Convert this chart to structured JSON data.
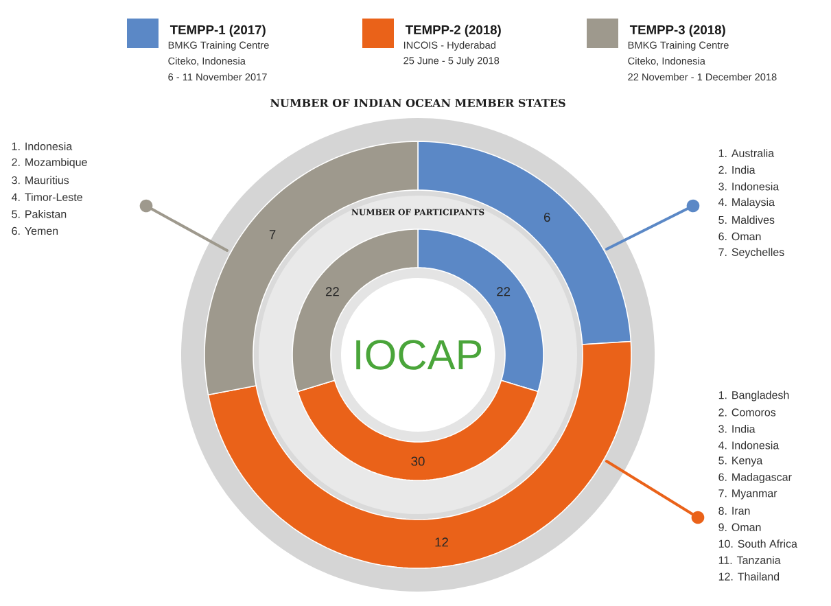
{
  "chart_data": [
    {
      "type": "donut",
      "title": "NUMBER OF INDIAN OCEAN MEMBER STATES",
      "categories": [
        "TEMPP-1 (2017)",
        "TEMPP-2 (2018)",
        "TEMPP-3 (2018)"
      ],
      "values": [
        6,
        12,
        7
      ],
      "colors": [
        "#5b88c6",
        "#ea6219",
        "#9e998d"
      ],
      "data_labels": true,
      "legend": "top",
      "annotations": [
        "BMKG Training Centre",
        "Citeko, Indonesia",
        "6 - 11 November 2017",
        "INCOIS - Hyderabad",
        "25 June - 5 July 2018",
        "BMKG Training Centre",
        "Citeko, Indonesia",
        "22 November - 1 December 2018",
        "1. Indonesia",
        "2. Mozambique",
        "3. Mauritius",
        "4. Timor-Leste",
        "5. Pakistan",
        "6. Yemen",
        "1. Australia",
        "2. India",
        "3. Indonesia",
        "4. Malaysia",
        "5. Maldives",
        "6. Oman",
        "7. Seychelles",
        "1. Bangladesh",
        "2. Comoros",
        "3. India",
        "4. Indonesia",
        "5. Kenya",
        "6. Madagascar",
        "7. Myanmar",
        "8. Iran",
        "9. Oman",
        "10. South Africa",
        "11. Tanzania",
        "12. Thailand"
      ]
    },
    {
      "type": "donut",
      "title": "NUMBER OF PARTICIPANTS",
      "categories": [
        null,
        null,
        null
      ],
      "values": [
        22,
        30,
        22
      ],
      "colors": [
        "#5b88c6",
        "#ea6219",
        "#9e998d"
      ],
      "data_labels": true,
      "annotations": [
        "IOCAP"
      ]
    }
  ]
}
